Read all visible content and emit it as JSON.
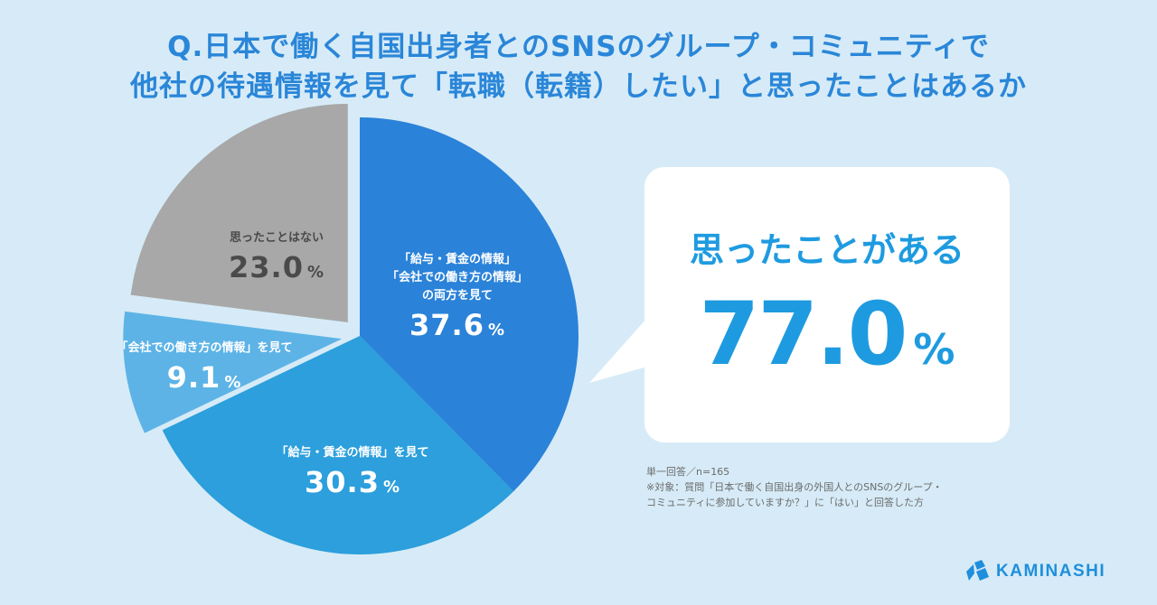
{
  "title": {
    "line1": "Q.日本で働く自国出身者とのSNSのグループ・コミュニティで",
    "line2": "他社の待遇情報を見て「転職（転籍）したい」と思ったことはあるか"
  },
  "chart_data": {
    "type": "pie",
    "title": "Q.日本で働く自国出身者とのSNSのグループ・コミュニティで他社の待遇情報を見て「転職（転籍）したい」と思ったことはあるか",
    "unit": "%",
    "slices": [
      {
        "label_lines": [
          "「給与・賃金の情報」",
          "「会社での働き方の情報」",
          "の両方を見て"
        ],
        "value": 37.6,
        "value_text": "37.6",
        "color": "#2a82d9",
        "exploded": false,
        "label_color": "#ffffff"
      },
      {
        "label_lines": [
          "「給与・賃金の情報」を見て"
        ],
        "value": 30.3,
        "value_text": "30.3",
        "color": "#2c9fdc",
        "exploded": false,
        "label_color": "#ffffff"
      },
      {
        "label_lines": [
          "「会社での働き方の情報」を見て"
        ],
        "value": 9.1,
        "value_text": "9.1",
        "color": "#5db3e6",
        "exploded": true,
        "label_color": "#ffffff"
      },
      {
        "label_lines": [
          "思ったことはない"
        ],
        "value": 23.0,
        "value_text": "23.0",
        "color": "#a8a8a8",
        "exploded": true,
        "label_color": "#4a4a4a"
      }
    ]
  },
  "callout": {
    "heading": "思ったことがある",
    "value": "77.0",
    "unit": "%"
  },
  "notes": [
    "単一回答／n=165",
    "※対象：質問「日本で働く自国出身の外国人とのSNSのグループ・",
    "コミュニティに参加していますか？」に「はい」と回答した方"
  ],
  "brand": {
    "name": "KAMINASHI",
    "color": "#1f8fdc",
    "icon": "kaminashi-logo-icon"
  }
}
